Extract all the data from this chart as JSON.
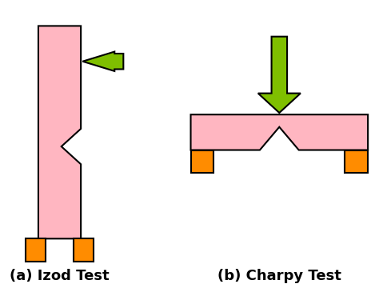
{
  "pink": "#FFB6C1",
  "orange": "#FF8C00",
  "green_arrow": "#7FBF00",
  "black": "#000000",
  "white": "#FFFFFF",
  "bg": "#FFFFFF",
  "label_a": "(a) Izod Test",
  "label_b": "(b) Charpy Test",
  "label_fontsize": 13
}
